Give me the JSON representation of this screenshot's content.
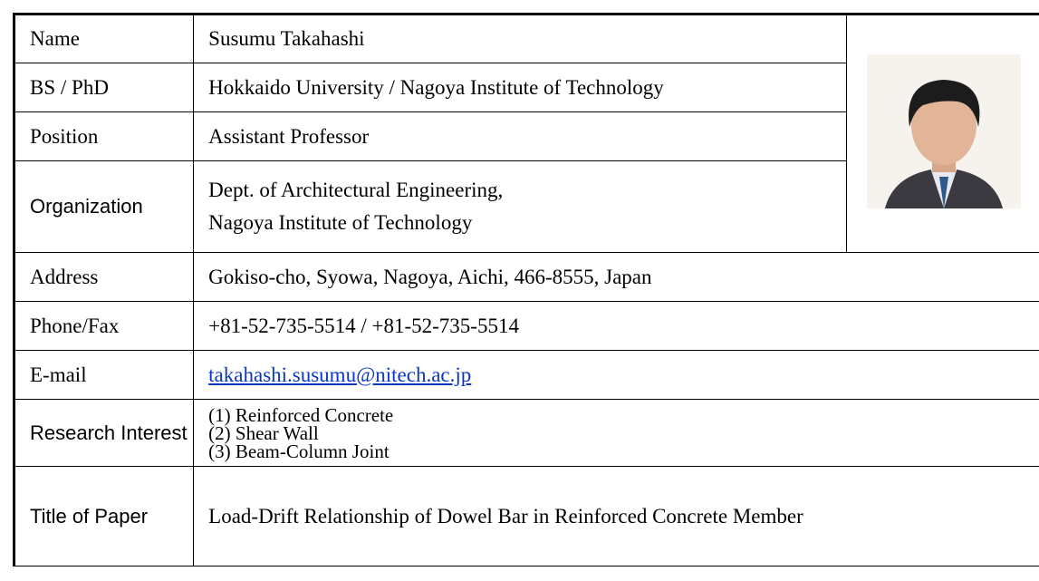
{
  "table": {
    "rows": [
      {
        "label": "Name",
        "value": "Susumu Takahashi"
      },
      {
        "label": "BS / PhD",
        "value": "Hokkaido University / Nagoya Institute of Technology"
      },
      {
        "label": "Position",
        "value": "Assistant Professor"
      },
      {
        "label": "Organization",
        "lines": [
          "Dept. of Architectural Engineering,",
          "Nagoya Institute of Technology"
        ]
      },
      {
        "label": "Address",
        "value": "Gokiso-cho, Syowa, Nagoya, Aichi, 466-8555, Japan"
      },
      {
        "label": "Phone/Fax",
        "value": "+81-52-735-5514 / +81-52-735-5514"
      },
      {
        "label": "E-mail",
        "value": "takahashi.susumu@nitech.ac.jp"
      },
      {
        "label": "Research Interest",
        "lines": [
          "(1) Reinforced Concrete",
          "(2) Shear Wall",
          "(3) Beam-Column Joint"
        ]
      },
      {
        "label": "Title of Paper",
        "value": "Load-Drift Relationship of Dowel Bar in Reinforced Concrete Member"
      }
    ]
  }
}
